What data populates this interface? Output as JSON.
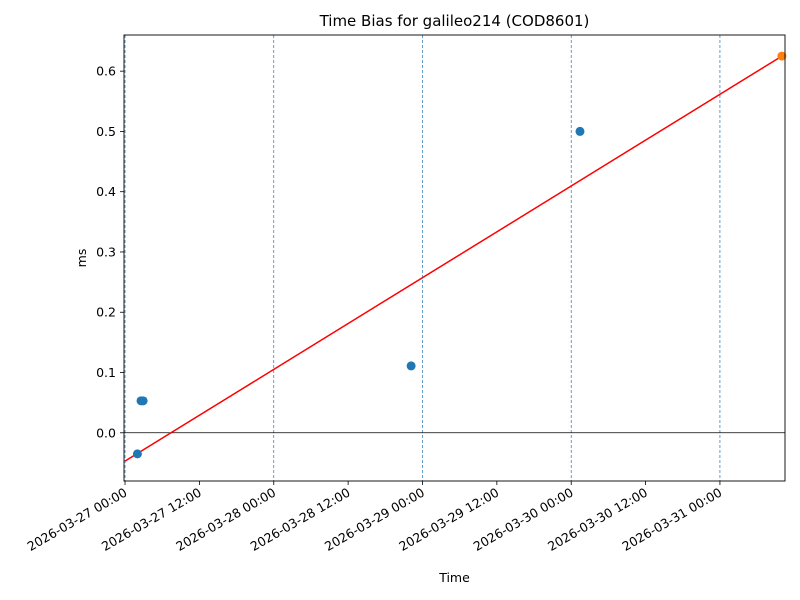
{
  "chart_data": {
    "type": "scatter",
    "title": "Time Bias for galileo214 (COD8601)",
    "xlabel": "Time",
    "ylabel": "ms",
    "x_axis_type": "datetime",
    "xlim": [
      "2026-03-26T23:50",
      "2026-03-31T10:30"
    ],
    "ylim": [
      -0.08,
      0.66
    ],
    "x_ticks": [
      "2026-03-27 00:00",
      "2026-03-27 12:00",
      "2026-03-28 00:00",
      "2026-03-28 12:00",
      "2026-03-29 00:00",
      "2026-03-29 12:00",
      "2026-03-30 00:00",
      "2026-03-30 12:00",
      "2026-03-31 00:00"
    ],
    "y_ticks": [
      "0.0",
      "0.1",
      "0.2",
      "0.3",
      "0.4",
      "0.5",
      "0.6"
    ],
    "y_tick_values": [
      0.0,
      0.1,
      0.2,
      0.3,
      0.4,
      0.5,
      0.6
    ],
    "vertical_gridlines": [
      "2026-03-27T00:00",
      "2026-03-28T00:00",
      "2026-03-29T00:00",
      "2026-03-30T00:00",
      "2026-03-31T00:00"
    ],
    "horizontal_reference_line": 0.0,
    "grid": false,
    "legend": "none",
    "series": [
      {
        "kind": "scatter",
        "color": "#1f77b4",
        "points": [
          {
            "x": "2026-03-27T02:00",
            "y": -0.035
          },
          {
            "x": "2026-03-27T02:35",
            "y": 0.053
          },
          {
            "x": "2026-03-27T02:55",
            "y": 0.053
          },
          {
            "x": "2026-03-28T22:10",
            "y": 0.111
          },
          {
            "x": "2026-03-30T01:25",
            "y": 0.5
          }
        ]
      },
      {
        "kind": "scatter",
        "color": "#ff7f0e",
        "points": [
          {
            "x": "2026-03-31T10:00",
            "y": 0.625
          }
        ]
      },
      {
        "kind": "line",
        "color": "#ff0000",
        "points": [
          {
            "x": "2026-03-27T00:00",
            "y": -0.047
          },
          {
            "x": "2026-03-31T10:00",
            "y": 0.625
          }
        ]
      }
    ]
  }
}
